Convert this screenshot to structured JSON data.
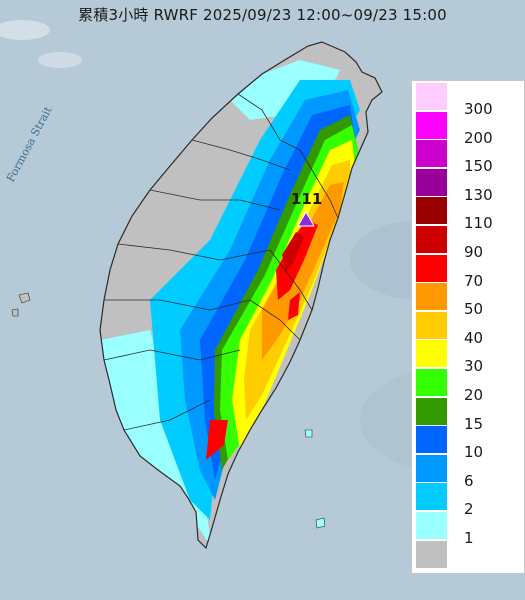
{
  "title": "累積3小時 RWRF 2025/09/23 12:00~09/23 15:00",
  "map_labels": {
    "strait": "Formosa Strait",
    "max_value": "111"
  },
  "legend": [
    {
      "label": "300",
      "color": "#ffccff"
    },
    {
      "label": "200",
      "color": "#ff00ff"
    },
    {
      "label": "150",
      "color": "#cc00cc"
    },
    {
      "label": "130",
      "color": "#990099"
    },
    {
      "label": "110",
      "color": "#990000"
    },
    {
      "label": "90",
      "color": "#cc0000"
    },
    {
      "label": "70",
      "color": "#ff0000"
    },
    {
      "label": "50",
      "color": "#ff9900"
    },
    {
      "label": "40",
      "color": "#ffcc00"
    },
    {
      "label": "30",
      "color": "#ffff00"
    },
    {
      "label": "20",
      "color": "#33ff00"
    },
    {
      "label": "15",
      "color": "#339900"
    },
    {
      "label": "10",
      "color": "#0066ff"
    },
    {
      "label": "6",
      "color": "#0099ff"
    },
    {
      "label": "2",
      "color": "#00ccff"
    },
    {
      "label": "1",
      "color": "#99ffff"
    },
    {
      "label": "",
      "color": "#c0c0c0"
    }
  ]
}
